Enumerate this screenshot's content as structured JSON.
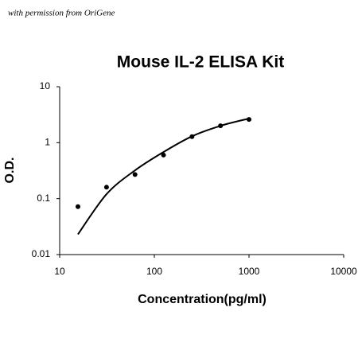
{
  "annotation": "with permission from OriGene",
  "chart_data": {
    "type": "scatter",
    "title": "Mouse IL-2 ELISA Kit",
    "x_label": "Concentration(pg/ml)",
    "y_label": "O.D.",
    "xscale": "log",
    "yscale": "log",
    "xlim": [
      10,
      10000
    ],
    "xticks": [
      10,
      100,
      1000,
      10000
    ],
    "ylim": [
      0.01,
      10
    ],
    "yticks": [
      0.01,
      0.1,
      1,
      10
    ],
    "series": [
      {
        "mode": "markers",
        "color": "#000000",
        "x": [
          15.6,
          31.25,
          62.5,
          125,
          250,
          500,
          1000
        ],
        "values": [
          0.072,
          0.16,
          0.27,
          0.6,
          1.28,
          2.0,
          2.6
        ]
      },
      {
        "mode": "line",
        "color": "#000000",
        "x": [
          15.6,
          31.25,
          62.5,
          125,
          250,
          500,
          1000
        ],
        "values": [
          0.023,
          0.12,
          0.32,
          0.68,
          1.3,
          2.0,
          2.7
        ]
      }
    ]
  }
}
